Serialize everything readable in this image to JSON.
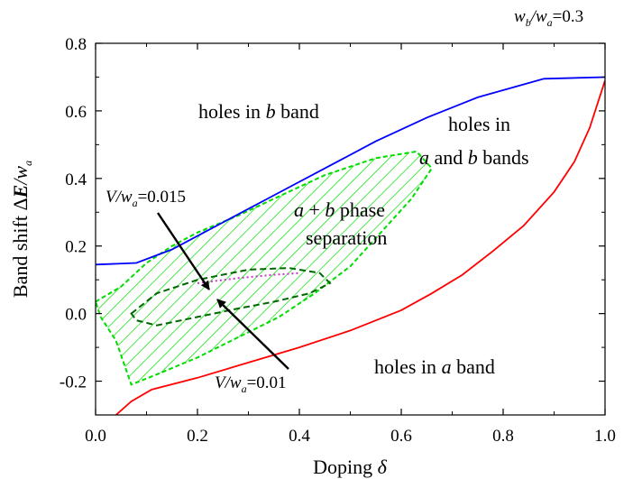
{
  "chart_data": {
    "type": "line",
    "xlabel": "Doping δ",
    "ylabel": "Band shift ΔE/w_a",
    "xlim": [
      0.0,
      1.0
    ],
    "ylim": [
      -0.3,
      0.8
    ],
    "xticks": [
      "0.0",
      "0.2",
      "0.4",
      "0.6",
      "0.8",
      "1.0"
    ],
    "yticks": [
      "-0.2",
      "0.0",
      "0.2",
      "0.4",
      "0.6",
      "0.8"
    ],
    "grid": false,
    "corner_label": "w_b/w_a=0.3",
    "colors": {
      "upper_boundary": "#0000ff",
      "lower_boundary": "#ff0000",
      "phase_separation": "#00dd00",
      "inner_region": "#006600",
      "dotted_line": "#cc33cc"
    },
    "series": [
      {
        "x": [
          0.0,
          0.08,
          0.15,
          0.25,
          0.35,
          0.45,
          0.55,
          0.65,
          0.75,
          0.88,
          1.0
        ],
        "y": [
          0.145,
          0.15,
          0.19,
          0.27,
          0.35,
          0.43,
          0.51,
          0.58,
          0.64,
          0.695,
          0.7
        ]
      },
      {
        "x": [
          0.04,
          0.07,
          0.11,
          0.2,
          0.3,
          0.4,
          0.5,
          0.6,
          0.66,
          0.72,
          0.78,
          0.84,
          0.9,
          0.94,
          0.97,
          1.0
        ],
        "y": [
          -0.3,
          -0.26,
          -0.225,
          -0.19,
          -0.145,
          -0.1,
          -0.05,
          0.01,
          0.06,
          0.115,
          0.185,
          0.26,
          0.36,
          0.45,
          0.55,
          0.69
        ]
      }
    ],
    "regions": [
      {
        "name": "phase-separation-0.015",
        "hatched": true,
        "boundary": [
          [
            0.0,
            0.035
          ],
          [
            0.05,
            0.08
          ],
          [
            0.1,
            0.15
          ],
          [
            0.15,
            0.2
          ],
          [
            0.2,
            0.24
          ],
          [
            0.28,
            0.29
          ],
          [
            0.35,
            0.34
          ],
          [
            0.45,
            0.41
          ],
          [
            0.55,
            0.46
          ],
          [
            0.63,
            0.48
          ],
          [
            0.66,
            0.43
          ],
          [
            0.62,
            0.34
          ],
          [
            0.56,
            0.24
          ],
          [
            0.5,
            0.14
          ],
          [
            0.43,
            0.06
          ],
          [
            0.36,
            -0.01
          ],
          [
            0.28,
            -0.07
          ],
          [
            0.2,
            -0.13
          ],
          [
            0.12,
            -0.18
          ],
          [
            0.07,
            -0.21
          ],
          [
            0.04,
            -0.08
          ],
          [
            0.01,
            -0.01
          ],
          [
            0.0,
            0.035
          ]
        ]
      },
      {
        "name": "phase-separation-0.01",
        "hatched": false,
        "boundary": [
          [
            0.07,
            0.0
          ],
          [
            0.12,
            0.06
          ],
          [
            0.2,
            0.1
          ],
          [
            0.3,
            0.13
          ],
          [
            0.38,
            0.135
          ],
          [
            0.44,
            0.12
          ],
          [
            0.46,
            0.09
          ],
          [
            0.42,
            0.06
          ],
          [
            0.35,
            0.035
          ],
          [
            0.28,
            0.015
          ],
          [
            0.2,
            -0.01
          ],
          [
            0.12,
            -0.035
          ],
          [
            0.08,
            -0.02
          ],
          [
            0.07,
            0.0
          ]
        ]
      }
    ],
    "dotted_line": [
      [
        0.2,
        0.09
      ],
      [
        0.28,
        0.105
      ],
      [
        0.35,
        0.115
      ],
      [
        0.4,
        0.12
      ]
    ],
    "region_labels": {
      "holes_b": [
        "holes in ",
        "b",
        " band"
      ],
      "holes_ab_1": "holes in",
      "holes_ab_2": [
        "a",
        " and ",
        "b",
        " bands"
      ],
      "phase_sep_1": [
        "a",
        " + ",
        "b",
        " phase"
      ],
      "phase_sep_2": "separation",
      "holes_a": [
        "holes in ",
        "a",
        " band"
      ]
    },
    "annotations": {
      "v015": "V/w_a=0.015",
      "v01": "V/w_a=0.01"
    }
  }
}
